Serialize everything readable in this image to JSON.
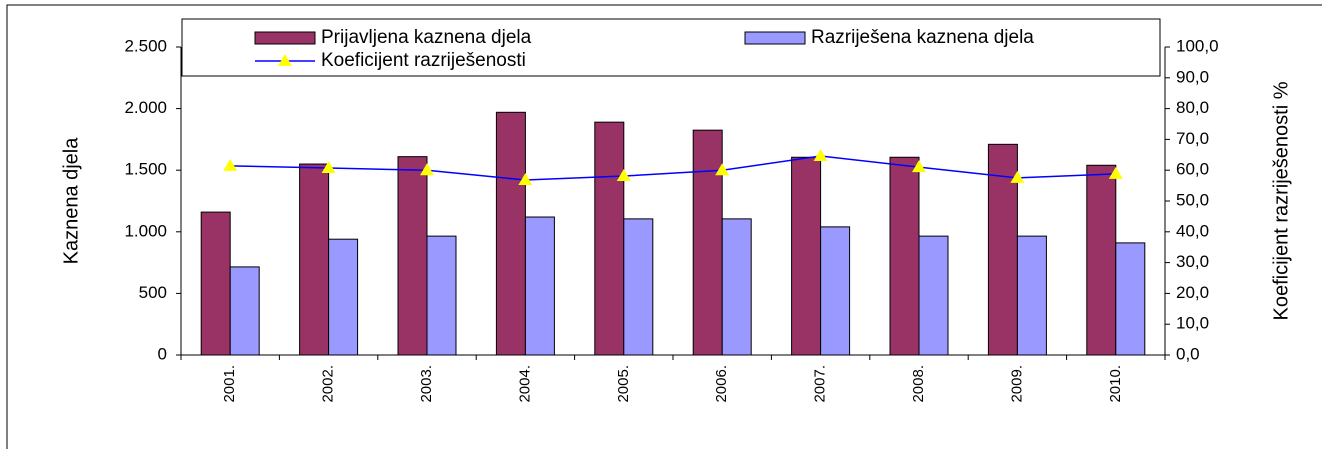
{
  "chart_data": {
    "type": "bar",
    "ylabel": "Kaznena djela",
    "y2label": "Koeficijent razriješenosti %",
    "categories": [
      "2001.",
      "2002.",
      "2003.",
      "2004.",
      "2005.",
      "2006.",
      "2007.",
      "2008.",
      "2009.",
      "2010."
    ],
    "series": [
      {
        "name": "Prijavljena kaznena djela",
        "color": "#993366",
        "type": "bar",
        "values": [
          1160,
          1550,
          1610,
          1970,
          1890,
          1825,
          1605,
          1605,
          1710,
          1540
        ]
      },
      {
        "name": "Razriješena kaznena djela",
        "color": "#9999ff",
        "type": "bar",
        "values": [
          715,
          940,
          965,
          1120,
          1105,
          1105,
          1040,
          965,
          965,
          910
        ]
      },
      {
        "name": "Koeficijent razriješenosti",
        "color": "#0000ff",
        "marker_color": "#ffff00",
        "type": "line",
        "axis": "y2",
        "values": [
          61.4,
          60.7,
          60.0,
          56.8,
          58.1,
          60.0,
          64.6,
          61.0,
          57.5,
          58.8
        ]
      }
    ],
    "ylim": [
      0,
      2500
    ],
    "yticks": [
      0,
      500,
      {
        "value": 1000,
        "label": "1.000"
      },
      {
        "value": 1500,
        "label": "1.500"
      },
      {
        "value": 2000,
        "label": "2.000"
      },
      {
        "value": 2500,
        "label": "2.500"
      }
    ],
    "y2lim": [
      0,
      100
    ],
    "y2ticks": [
      {
        "value": 0,
        "label": "0,0"
      },
      {
        "value": 10,
        "label": "10,0"
      },
      {
        "value": 20,
        "label": "20,0"
      },
      {
        "value": 30,
        "label": "30,0"
      },
      {
        "value": 40,
        "label": "40,0"
      },
      {
        "value": 50,
        "label": "50,0"
      },
      {
        "value": 60,
        "label": "60,0"
      },
      {
        "value": 70,
        "label": "70,0"
      },
      {
        "value": 80,
        "label": "80,0"
      },
      {
        "value": 90,
        "label": "90,0"
      },
      {
        "value": 100,
        "label": "100,0"
      }
    ],
    "grid": false,
    "legend": "top"
  }
}
